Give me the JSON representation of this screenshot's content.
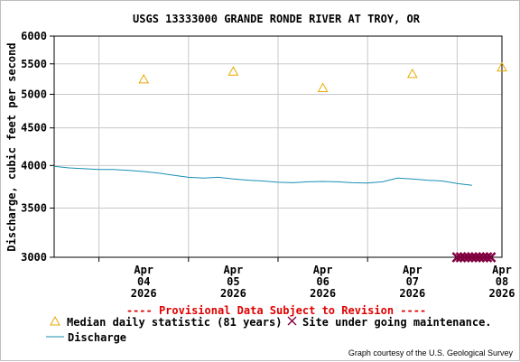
{
  "chart_data": {
    "type": "line",
    "title": "USGS 13333000 GRANDE RONDE RIVER AT TROY, OR",
    "ylabel": "Discharge, cubic feet per second",
    "y_scale": "log",
    "ylim": [
      3000,
      6000
    ],
    "y_ticks": [
      3000,
      3500,
      4000,
      4500,
      5000,
      5500,
      6000
    ],
    "y_tick_labels": [
      "3000",
      "3500",
      "4000",
      "4500",
      "5000",
      "5500",
      "6000"
    ],
    "x_range": [
      "2026-04-03T12:00",
      "2026-04-08T12:00"
    ],
    "x_ticks": [
      {
        "date": "2026-04-04",
        "month": "Apr",
        "day": "04",
        "year": "2026"
      },
      {
        "date": "2026-04-05",
        "month": "Apr",
        "day": "05",
        "year": "2026"
      },
      {
        "date": "2026-04-06",
        "month": "Apr",
        "day": "06",
        "year": "2026"
      },
      {
        "date": "2026-04-07",
        "month": "Apr",
        "day": "07",
        "year": "2026"
      },
      {
        "date": "2026-04-08",
        "month": "Apr",
        "day": "08",
        "year": "2026"
      }
    ],
    "grid": true,
    "series": [
      {
        "name": "Discharge",
        "kind": "line",
        "color": "#1a8fb3",
        "points": [
          [
            "2026-04-03T12:00",
            3990
          ],
          [
            "2026-04-03T16:00",
            3970
          ],
          [
            "2026-04-03T20:00",
            3960
          ],
          [
            "2026-04-04T00:00",
            3950
          ],
          [
            "2026-04-04T04:00",
            3950
          ],
          [
            "2026-04-04T08:00",
            3940
          ],
          [
            "2026-04-04T12:00",
            3925
          ],
          [
            "2026-04-04T16:00",
            3905
          ],
          [
            "2026-04-04T20:00",
            3880
          ],
          [
            "2026-04-05T00:00",
            3855
          ],
          [
            "2026-04-05T04:00",
            3845
          ],
          [
            "2026-04-05T08:00",
            3855
          ],
          [
            "2026-04-05T12:00",
            3835
          ],
          [
            "2026-04-05T16:00",
            3820
          ],
          [
            "2026-04-05T20:00",
            3810
          ],
          [
            "2026-04-06T00:00",
            3795
          ],
          [
            "2026-04-06T04:00",
            3790
          ],
          [
            "2026-04-06T08:00",
            3800
          ],
          [
            "2026-04-06T12:00",
            3805
          ],
          [
            "2026-04-06T16:00",
            3800
          ],
          [
            "2026-04-06T20:00",
            3790
          ],
          [
            "2026-04-07T00:00",
            3785
          ],
          [
            "2026-04-07T04:00",
            3800
          ],
          [
            "2026-04-07T08:00",
            3845
          ],
          [
            "2026-04-07T12:00",
            3835
          ],
          [
            "2026-04-07T16:00",
            3820
          ],
          [
            "2026-04-07T20:00",
            3810
          ],
          [
            "2026-04-08T00:00",
            3780
          ],
          [
            "2026-04-08T04:00",
            3760
          ]
        ]
      },
      {
        "name": "Median daily statistic (81 years)",
        "kind": "marker",
        "marker": "triangle",
        "color": "#e8a800",
        "points": [
          [
            "2026-04-04T12:00",
            5240
          ],
          [
            "2026-04-05T12:00",
            5370
          ],
          [
            "2026-04-06T12:00",
            5100
          ],
          [
            "2026-04-07T12:00",
            5330
          ],
          [
            "2026-04-08T12:00",
            5440
          ]
        ]
      },
      {
        "name": "Site under going maintenance.",
        "kind": "marker",
        "marker": "x",
        "color": "#800040",
        "points": [
          [
            "2026-04-08T00:00",
            3000
          ],
          [
            "2026-04-08T01:00",
            3000
          ],
          [
            "2026-04-08T02:00",
            3000
          ],
          [
            "2026-04-08T03:00",
            3000
          ],
          [
            "2026-04-08T04:00",
            3000
          ],
          [
            "2026-04-08T05:00",
            3000
          ],
          [
            "2026-04-08T06:00",
            3000
          ],
          [
            "2026-04-08T07:00",
            3000
          ],
          [
            "2026-04-08T08:00",
            3000
          ],
          [
            "2026-04-08T09:00",
            3000
          ]
        ]
      }
    ]
  },
  "notice": "---- Provisional Data Subject to Revision ----",
  "legend": {
    "median": "Median daily statistic (81 years)",
    "maintenance": "Site under going maintenance.",
    "discharge": "Discharge"
  },
  "credit": "Graph courtesy of the U.S. Geological Survey",
  "colors": {
    "notice": "#e00000",
    "grid": "#c8c8c8",
    "axis": "#000000"
  }
}
